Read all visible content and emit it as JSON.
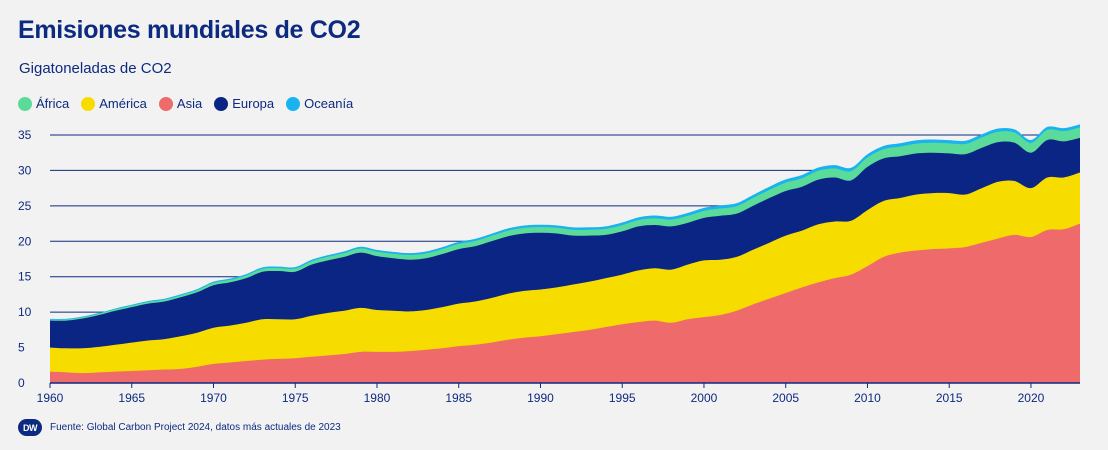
{
  "header": {
    "title": "Emisiones mundiales de CO2",
    "subtitle": "Gigatoneladas de CO2"
  },
  "footer": {
    "logo_text": "DW",
    "source": "Fuente: Global Carbon Project 2024, datos más actuales de 2023"
  },
  "chart_data": {
    "type": "area",
    "stacked": true,
    "x_start": 1960,
    "x_end": 2023,
    "ylim": [
      0,
      35
    ],
    "yticks": [
      0,
      5,
      10,
      15,
      20,
      25,
      30,
      35
    ],
    "xticks": [
      1960,
      1965,
      1970,
      1975,
      1980,
      1985,
      1990,
      1995,
      2000,
      2005,
      2010,
      2015,
      2020
    ],
    "ytick_labels": [
      "0",
      "5",
      "10",
      "15",
      "20",
      "25",
      "30",
      "35"
    ],
    "xtick_labels": [
      "1960",
      "1965",
      "1970",
      "1975",
      "1980",
      "1985",
      "1990",
      "1995",
      "2000",
      "2005",
      "2010",
      "2015",
      "2020"
    ],
    "grid": "horizontal",
    "legend_position": "top-left",
    "series": [
      {
        "name": "Asia",
        "color": "#ef6b6b",
        "values": [
          1.6,
          1.5,
          1.4,
          1.5,
          1.6,
          1.7,
          1.8,
          1.9,
          2.0,
          2.3,
          2.7,
          2.9,
          3.1,
          3.3,
          3.4,
          3.5,
          3.7,
          3.9,
          4.1,
          4.4,
          4.4,
          4.4,
          4.5,
          4.7,
          4.9,
          5.2,
          5.4,
          5.7,
          6.1,
          6.4,
          6.6,
          6.9,
          7.2,
          7.5,
          7.9,
          8.3,
          8.6,
          8.8,
          8.5,
          9.0,
          9.3,
          9.6,
          10.2,
          11.1,
          11.9,
          12.7,
          13.5,
          14.2,
          14.8,
          15.3,
          16.5,
          17.8,
          18.4,
          18.7,
          18.9,
          19.0,
          19.2,
          19.8,
          20.4,
          20.9,
          20.6,
          21.6,
          21.7,
          22.5
        ]
      },
      {
        "name": "América",
        "color": "#f7dc00",
        "values": [
          3.4,
          3.4,
          3.5,
          3.6,
          3.8,
          4.0,
          4.2,
          4.3,
          4.6,
          4.8,
          5.1,
          5.2,
          5.4,
          5.7,
          5.6,
          5.5,
          5.8,
          6.0,
          6.1,
          6.2,
          5.9,
          5.8,
          5.6,
          5.6,
          5.8,
          6.0,
          6.1,
          6.3,
          6.5,
          6.6,
          6.6,
          6.6,
          6.7,
          6.8,
          6.9,
          7.0,
          7.3,
          7.4,
          7.5,
          7.7,
          8.0,
          7.8,
          7.6,
          7.7,
          7.9,
          8.1,
          8.0,
          8.2,
          8.0,
          7.6,
          7.9,
          7.9,
          7.7,
          7.9,
          7.9,
          7.8,
          7.4,
          7.7,
          8.0,
          7.6,
          6.9,
          7.4,
          7.3,
          7.2
        ]
      },
      {
        "name": "Europa",
        "color": "#0a2584",
        "values": [
          3.8,
          3.9,
          4.2,
          4.5,
          4.8,
          5.0,
          5.2,
          5.3,
          5.5,
          5.7,
          6.0,
          6.1,
          6.3,
          6.7,
          6.8,
          6.7,
          7.2,
          7.4,
          7.6,
          7.8,
          7.6,
          7.4,
          7.3,
          7.3,
          7.5,
          7.7,
          7.8,
          8.0,
          8.1,
          8.1,
          8.0,
          7.6,
          6.9,
          6.5,
          6.1,
          6.1,
          6.2,
          6.1,
          6.1,
          5.9,
          6.0,
          6.2,
          6.1,
          6.2,
          6.3,
          6.3,
          6.2,
          6.3,
          6.2,
          5.7,
          6.1,
          6.0,
          5.9,
          5.8,
          5.7,
          5.6,
          5.7,
          5.7,
          5.6,
          5.4,
          5.0,
          5.3,
          5.1,
          4.9
        ]
      },
      {
        "name": "África",
        "color": "#5bdb9a",
        "values": [
          0.15,
          0.16,
          0.17,
          0.18,
          0.2,
          0.22,
          0.24,
          0.25,
          0.27,
          0.29,
          0.33,
          0.35,
          0.38,
          0.41,
          0.42,
          0.44,
          0.47,
          0.51,
          0.54,
          0.58,
          0.62,
          0.64,
          0.66,
          0.68,
          0.7,
          0.73,
          0.74,
          0.76,
          0.79,
          0.8,
          0.8,
          0.81,
          0.82,
          0.83,
          0.85,
          0.88,
          0.9,
          0.94,
          0.96,
          0.98,
          1.0,
          1.02,
          1.05,
          1.1,
          1.15,
          1.18,
          1.2,
          1.25,
          1.28,
          1.3,
          1.32,
          1.3,
          1.36,
          1.38,
          1.4,
          1.42,
          1.44,
          1.45,
          1.46,
          1.45,
          1.38,
          1.42,
          1.45,
          1.48
        ]
      },
      {
        "name": "Oceanía",
        "color": "#19b4f0",
        "values": [
          0.1,
          0.1,
          0.11,
          0.11,
          0.12,
          0.13,
          0.14,
          0.14,
          0.15,
          0.16,
          0.17,
          0.18,
          0.19,
          0.2,
          0.21,
          0.22,
          0.22,
          0.23,
          0.24,
          0.25,
          0.26,
          0.27,
          0.27,
          0.28,
          0.28,
          0.29,
          0.3,
          0.31,
          0.32,
          0.33,
          0.34,
          0.34,
          0.35,
          0.35,
          0.36,
          0.37,
          0.38,
          0.39,
          0.4,
          0.41,
          0.42,
          0.43,
          0.43,
          0.44,
          0.45,
          0.45,
          0.46,
          0.46,
          0.47,
          0.47,
          0.46,
          0.46,
          0.47,
          0.47,
          0.46,
          0.45,
          0.45,
          0.45,
          0.45,
          0.44,
          0.42,
          0.42,
          0.42,
          0.42
        ]
      }
    ],
    "legend_order": [
      "África",
      "América",
      "Asia",
      "Europa",
      "Oceanía"
    ]
  }
}
